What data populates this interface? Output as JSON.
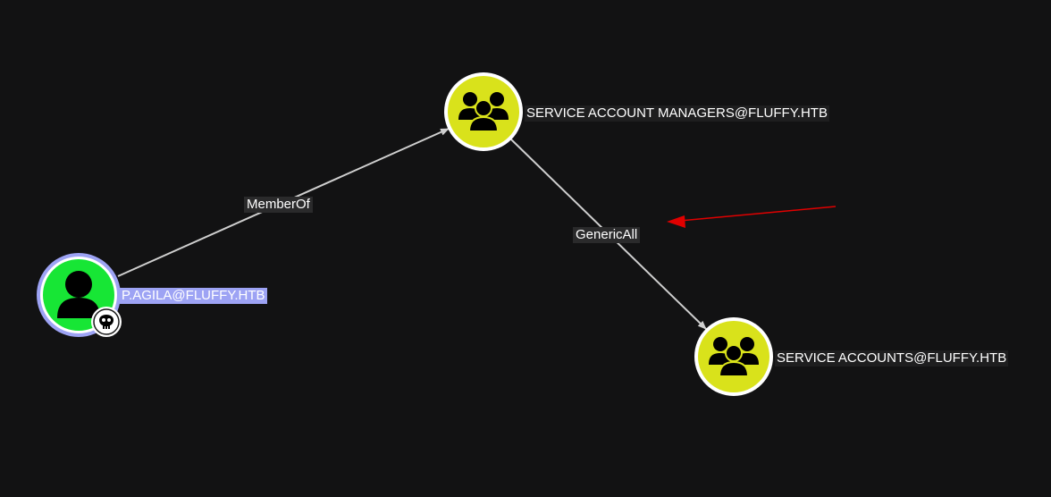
{
  "graph": {
    "nodes": {
      "user": {
        "label": "P.AGILA@FLUFFY.HTB",
        "type": "user",
        "owned": true,
        "selected": true
      },
      "sam": {
        "label": "SERVICE ACCOUNT MANAGERS@FLUFFY.HTB",
        "type": "group"
      },
      "sa": {
        "label": "SERVICE ACCOUNTS@FLUFFY.HTB",
        "type": "group"
      }
    },
    "edges": {
      "memberof": {
        "label": "MemberOf",
        "from": "user",
        "to": "sam"
      },
      "genericall": {
        "label": "GenericAll",
        "from": "sam",
        "to": "sa"
      }
    }
  },
  "icons": {
    "user_node": "user-icon",
    "group_node": "group-icon",
    "owned_badge": "skull-icon",
    "annotation": "red-arrow-icon"
  },
  "colors": {
    "background": "#121213",
    "user_fill": "#17e635",
    "group_fill": "#d9e21b",
    "selected_ring": "#9da3f4",
    "edge": "#cfcfcf",
    "annotation_arrow": "#e00000"
  }
}
